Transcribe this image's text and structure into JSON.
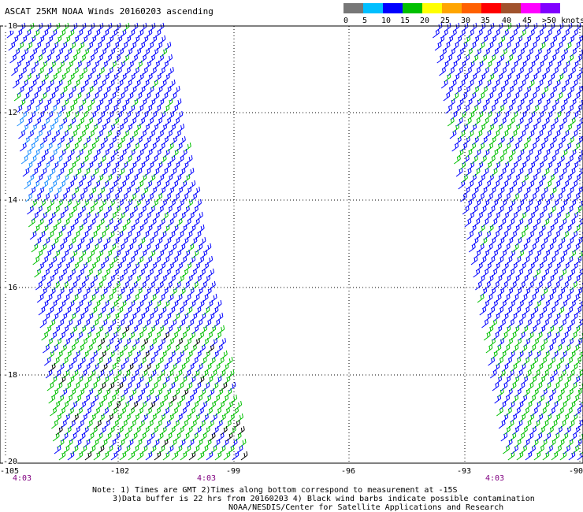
{
  "title": "ASCAT 25KM NOAA Winds 20160203 ascending",
  "legend": {
    "colors": [
      "#777777",
      "#00bfff",
      "#0000ff",
      "#00c000",
      "#ffff00",
      "#ffa500",
      "#ff6000",
      "#ff0000",
      "#a0522d",
      "#ff00ff",
      "#8000ff"
    ],
    "labels": [
      "0",
      "5",
      "10",
      "15",
      "20",
      "25",
      "30",
      "35",
      "40",
      "45",
      ">50 knots"
    ]
  },
  "map": {
    "lon_labels": [
      "-105",
      "-102",
      "-99",
      "-96",
      "-93",
      "-90"
    ],
    "lat_labels": [
      "-10",
      "-12",
      "-14",
      "-16",
      "-18",
      "-20"
    ],
    "time_labels": [
      "4:03",
      "4:03",
      "4:03"
    ]
  },
  "notes": {
    "line1": "Note: 1) Times are GMT 2)Times along bottom correspond to measurement at -15S",
    "line2": "3)Data buffer is 22 hrs from 20160203 4) Black wind barbs indicate possible contamination",
    "line3": "NOAA/NESDIS/Center for Satellite Applications and Research"
  },
  "icons": [
    "wind-barb-icon"
  ]
}
